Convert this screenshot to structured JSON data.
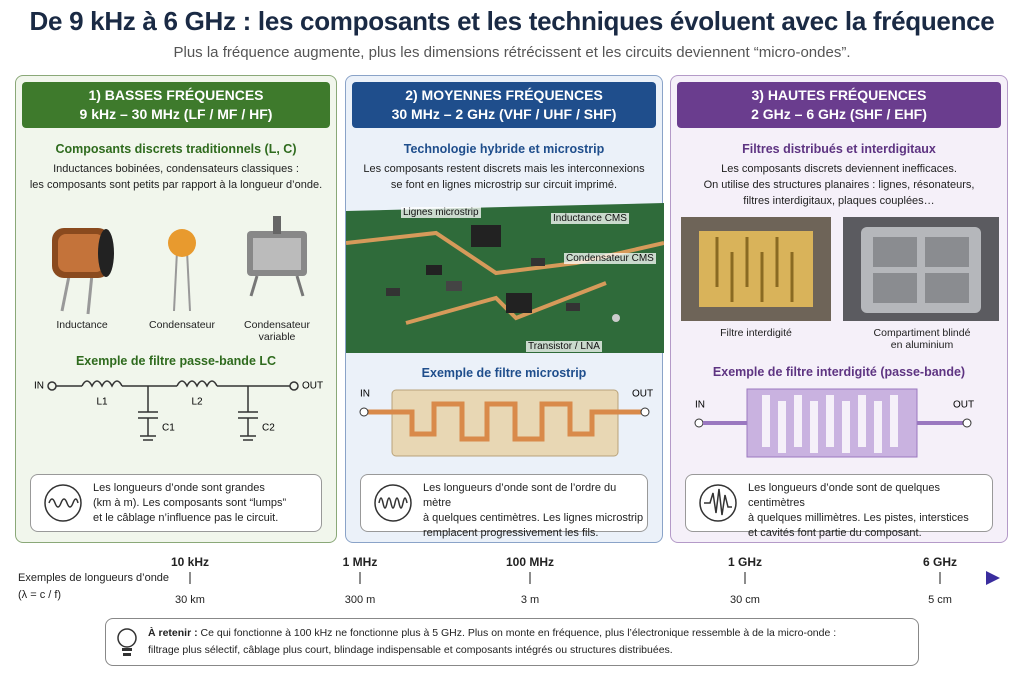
{
  "header": {
    "title": "De 9 kHz à 6 GHz : les composants et les techniques évoluent avec la fréquence",
    "subtitle": "Plus la fréquence augmente, plus les dimensions rétrécissent et les circuits deviennent “micro-ondes”."
  },
  "panels": [
    {
      "heading": "1) BASSES FRÉQUENCES",
      "range": "9 kHz – 30 MHz (LF / MF / HF)",
      "section_title": "Composants discrets traditionnels (L, C)",
      "description": [
        "Inductances bobinées, condensateurs classiques :",
        "les composants sont petits par rapport à la longueur d’onde."
      ],
      "images": [
        "Inductance",
        "Condensateur",
        "Condensateur variable"
      ],
      "example_title": "Exemple de filtre passe-bande LC",
      "diagram_labels": [
        "IN",
        "L1",
        "L2",
        "OUT",
        "C1",
        "C2"
      ],
      "note": [
        "Les longueurs d’onde sont grandes",
        "(km à m). Les composants sont “lumps”",
        "et le câblage n’influence pas le circuit."
      ]
    },
    {
      "heading": "2) MOYENNES FRÉQUENCES",
      "range": "30 MHz – 2 GHz (VHF / UHF / SHF)",
      "section_title": "Technologie hybride et microstrip",
      "description": [
        "Les composants restent discrets mais les interconnexions",
        "se font en lignes microstrip sur circuit imprimé."
      ],
      "images": [
        "Lignes microstrip",
        "Inductance CMS",
        "Condensateur CMS",
        "Transistor / LNA"
      ],
      "example_title": "Exemple de filtre microstrip",
      "diagram_labels": [
        "IN",
        "OUT"
      ],
      "note": [
        "Les longueurs d’onde sont de l’ordre du mètre",
        "à quelques centimètres. Les lignes microstrip",
        "remplacent progressivement les fils."
      ]
    },
    {
      "heading": "3) HAUTES FRÉQUENCES",
      "range": "2 GHz – 6 GHz (SHF / EHF)",
      "section_title": "Filtres distribués et interdigitaux",
      "description": [
        "Les composants discrets deviennent inefficaces.",
        "On utilise des structures planaires : lignes, résonateurs,",
        "filtres interdigitaux, plaques couplées…"
      ],
      "images": [
        "Filtre interdigité",
        "Compartiment blindé en aluminium"
      ],
      "example_title": "Exemple de filtre interdigité (passe-bande)",
      "diagram_labels": [
        "IN",
        "OUT"
      ],
      "note": [
        "Les longueurs d’onde sont de quelques centimètres",
        "à quelques millimètres. Les pistes, interstices",
        "et cavités font partie du composant."
      ]
    }
  ],
  "timeline": {
    "label": [
      "Exemples de longueurs d’onde",
      "(λ = c / f)"
    ],
    "points": [
      {
        "frequency": "10 kHz",
        "wavelength": "30 km"
      },
      {
        "frequency": "1 MHz",
        "wavelength": "300 m"
      },
      {
        "frequency": "100 MHz",
        "wavelength": "3 m"
      },
      {
        "frequency": "1 GHz",
        "wavelength": "30 cm"
      },
      {
        "frequency": "6 GHz",
        "wavelength": "5 cm"
      }
    ]
  },
  "takeaway": {
    "label": "À retenir :",
    "text": [
      "Ce qui fonctionne à 100 kHz ne fonctionne plus à 5 GHz. Plus on monte en fréquence, plus l’électronique ressemble à de la micro-onde :",
      "filtrage plus sélectif, câblage plus court, blindage indispensable et composants intégrés ou structures distribuées."
    ]
  }
}
